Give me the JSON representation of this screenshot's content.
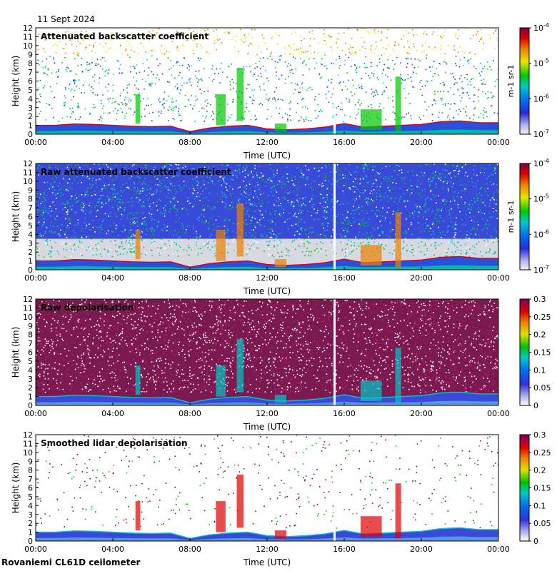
{
  "date_label": "11 Sept 2024",
  "site_label": "Rovaniemi CL61D ceilometer",
  "chart_data": [
    {
      "type": "heatmap",
      "title": "Attenuated backscatter coefficient",
      "xlabel": "Time (UTC)",
      "ylabel": "Height (km)",
      "xticks": [
        "00:00",
        "04:00",
        "08:00",
        "12:00",
        "16:00",
        "20:00",
        "00:00"
      ],
      "xlim_hours": [
        0,
        24
      ],
      "yticks": [
        0,
        1,
        2,
        3,
        4,
        5,
        6,
        7,
        8,
        9,
        10,
        11,
        12
      ],
      "ylim_km": [
        0,
        12
      ],
      "colorbar": {
        "scale": "log",
        "ticks": [
          "10-7",
          "10-6",
          "10-5",
          "10-4"
        ],
        "unit": "m-1 sr-1",
        "range": [
          1e-07,
          0.0001
        ]
      },
      "boundary_layer_km": [
        [
          0,
          1.0
        ],
        [
          1,
          1.0
        ],
        [
          2,
          1.15
        ],
        [
          3,
          1.1
        ],
        [
          4,
          1.0
        ],
        [
          5,
          0.9
        ],
        [
          6,
          0.85
        ],
        [
          7,
          0.9
        ],
        [
          8,
          0.3
        ],
        [
          9,
          0.7
        ],
        [
          10,
          0.9
        ],
        [
          11,
          1.0
        ],
        [
          12,
          0.6
        ],
        [
          13,
          0.5
        ],
        [
          14,
          0.6
        ],
        [
          15,
          0.8
        ],
        [
          16,
          1.2
        ],
        [
          17,
          0.8
        ],
        [
          18,
          0.9
        ],
        [
          19,
          1.0
        ],
        [
          20,
          1.1
        ],
        [
          21,
          1.4
        ],
        [
          22,
          1.5
        ],
        [
          23,
          1.3
        ],
        [
          24,
          1.3
        ]
      ],
      "data_gap_hours": 15.5
    },
    {
      "type": "heatmap",
      "title": "Raw attenuated backscatter coefficient",
      "xlabel": "Time (UTC)",
      "ylabel": "Height (km)",
      "xticks": [
        "00:00",
        "04:00",
        "08:00",
        "12:00",
        "16:00",
        "20:00",
        "00:00"
      ],
      "xlim_hours": [
        0,
        24
      ],
      "yticks": [
        0,
        1,
        2,
        3,
        4,
        5,
        6,
        7,
        8,
        9,
        10,
        11,
        12
      ],
      "ylim_km": [
        0,
        12
      ],
      "colorbar": {
        "scale": "log",
        "ticks": [
          "10-7",
          "10-6",
          "10-5",
          "10-4"
        ],
        "unit": "m-1 sr-1",
        "range": [
          1e-07,
          0.0001
        ]
      },
      "data_gap_hours": 15.5
    },
    {
      "type": "heatmap",
      "title": "Raw depolarisation",
      "xlabel": "Time (UTC)",
      "ylabel": "Height (km)",
      "xticks": [
        "00:00",
        "04:00",
        "08:00",
        "12:00",
        "16:00",
        "20:00",
        "00:00"
      ],
      "xlim_hours": [
        0,
        24
      ],
      "yticks": [
        0,
        1,
        2,
        3,
        4,
        5,
        6,
        7,
        8,
        9,
        10,
        11,
        12
      ],
      "ylim_km": [
        0,
        12
      ],
      "colorbar": {
        "scale": "linear",
        "ticks": [
          "0",
          "0.05",
          "0.1",
          "0.15",
          "0.2",
          "0.25",
          "0.3"
        ],
        "range": [
          0,
          0.3
        ]
      },
      "data_gap_hours": 15.5
    },
    {
      "type": "heatmap",
      "title": "Smoothed lidar depolarisation",
      "xlabel": "Time (UTC)",
      "ylabel": "Height (km)",
      "xticks": [
        "00:00",
        "04:00",
        "08:00",
        "12:00",
        "16:00",
        "20:00",
        "00:00"
      ],
      "xlim_hours": [
        0,
        24
      ],
      "yticks": [
        0,
        1,
        2,
        3,
        4,
        5,
        6,
        7,
        8,
        9,
        10,
        11,
        12
      ],
      "ylim_km": [
        0,
        12
      ],
      "colorbar": {
        "scale": "linear",
        "ticks": [
          "0",
          "0.05",
          "0.1",
          "0.15",
          "0.2",
          "0.25",
          "0.3"
        ],
        "range": [
          0,
          0.3
        ]
      },
      "data_gap_hours": 15.5
    }
  ]
}
